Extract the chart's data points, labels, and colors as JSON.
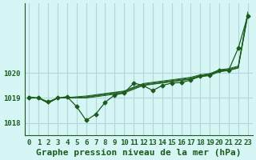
{
  "title": "Graphe pression niveau de la mer (hPa)",
  "bg_color": "#d6f5f5",
  "line_color": "#1a5c1a",
  "grid_color": "#b0d8d8",
  "x_values": [
    0,
    1,
    2,
    3,
    4,
    5,
    6,
    7,
    8,
    9,
    10,
    11,
    12,
    13,
    14,
    15,
    16,
    17,
    18,
    19,
    20,
    21,
    22,
    23
  ],
  "y_main": [
    1019.0,
    1019.0,
    1018.85,
    1019.0,
    1019.05,
    1018.65,
    1018.1,
    1018.35,
    1018.83,
    1019.12,
    1019.2,
    1019.6,
    1019.5,
    1019.3,
    1019.5,
    1019.6,
    1019.62,
    1019.72,
    1019.88,
    1019.92,
    1020.12,
    1020.12,
    1021.0,
    1022.3
  ],
  "y_trend1": [
    1019.0,
    1019.0,
    1018.8,
    1019.0,
    1019.0,
    1019.0,
    1019.0,
    1019.05,
    1019.1,
    1019.15,
    1019.2,
    1019.35,
    1019.5,
    1019.55,
    1019.6,
    1019.65,
    1019.7,
    1019.75,
    1019.85,
    1019.9,
    1020.05,
    1020.1,
    1020.2,
    1022.3
  ],
  "y_trend2": [
    1019.0,
    1019.0,
    1018.8,
    1019.0,
    1019.0,
    1019.0,
    1019.02,
    1019.08,
    1019.13,
    1019.18,
    1019.23,
    1019.38,
    1019.52,
    1019.57,
    1019.62,
    1019.67,
    1019.72,
    1019.77,
    1019.87,
    1019.92,
    1020.07,
    1020.12,
    1020.22,
    1022.35
  ],
  "y_trend3": [
    1019.0,
    1019.0,
    1018.8,
    1019.0,
    1019.0,
    1019.02,
    1019.05,
    1019.1,
    1019.16,
    1019.21,
    1019.26,
    1019.41,
    1019.55,
    1019.6,
    1019.65,
    1019.7,
    1019.75,
    1019.8,
    1019.9,
    1019.95,
    1020.1,
    1020.15,
    1020.25,
    1022.4
  ],
  "y_trend4": [
    1019.05,
    1019.0,
    1018.8,
    1019.0,
    1019.02,
    1019.05,
    1019.08,
    1019.13,
    1019.18,
    1019.23,
    1019.28,
    1019.44,
    1019.58,
    1019.63,
    1019.68,
    1019.73,
    1019.78,
    1019.83,
    1019.93,
    1019.98,
    1020.13,
    1020.18,
    1020.28,
    1022.45
  ],
  "ylim": [
    1017.5,
    1022.8
  ],
  "yticks": [
    1018,
    1019,
    1020
  ],
  "xlim": [
    -0.5,
    23.5
  ],
  "xticks": [
    0,
    1,
    2,
    3,
    4,
    5,
    6,
    7,
    8,
    9,
    10,
    11,
    12,
    13,
    14,
    15,
    16,
    17,
    18,
    19,
    20,
    21,
    22,
    23
  ],
  "title_fontsize": 8,
  "tick_fontsize": 6.5
}
